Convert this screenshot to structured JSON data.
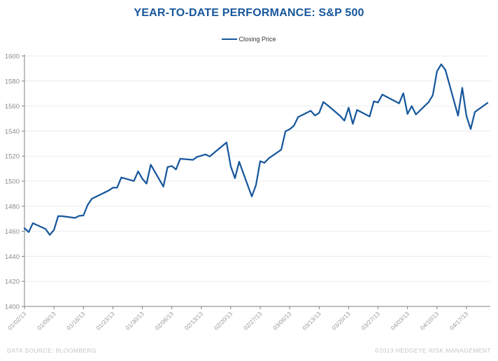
{
  "title": "YEAR-TO-DATE PERFORMANCE: S&P 500",
  "legend": {
    "label": "Closing Price"
  },
  "footer": {
    "left": "DATA SOURCE: BLOOMBERG",
    "right": "©2013 HEDGEYE RISK MANAGEMENT"
  },
  "colors": {
    "accent": "#17579C",
    "line": "#17579C",
    "axis": "#808080",
    "grid": "#EBEBEB",
    "y_tick_text": "#8C8C8C",
    "x_tick_text": "#999999",
    "legend_text": "#333333",
    "footer_text": "#C5C5C5"
  },
  "chart_data": {
    "type": "line",
    "title": "YEAR-TO-DATE PERFORMANCE: S&P 500",
    "xlabel": "",
    "ylabel": "",
    "ylim": [
      1400,
      1600
    ],
    "y_ticks": [
      1400,
      1420,
      1440,
      1460,
      1480,
      1500,
      1520,
      1540,
      1560,
      1580,
      1600
    ],
    "grid": "horizontal",
    "legend_position": "top-center",
    "x_axis_type": "date",
    "x_tick_labels": [
      "01/02/13",
      "01/09/13",
      "01/16/13",
      "01/23/13",
      "01/30/13",
      "02/06/13",
      "02/13/13",
      "02/20/13",
      "02/27/13",
      "03/06/13",
      "03/13/13",
      "03/20/13",
      "03/27/13",
      "04/03/13",
      "04/10/13",
      "04/17/13"
    ],
    "x": [
      "01/02/13",
      "01/03/13",
      "01/04/13",
      "01/07/13",
      "01/08/13",
      "01/09/13",
      "01/10/13",
      "01/11/13",
      "01/14/13",
      "01/15/13",
      "01/16/13",
      "01/17/13",
      "01/18/13",
      "01/22/13",
      "01/23/13",
      "01/24/13",
      "01/25/13",
      "01/28/13",
      "01/29/13",
      "01/30/13",
      "01/31/13",
      "02/01/13",
      "02/04/13",
      "02/05/13",
      "02/06/13",
      "02/07/13",
      "02/08/13",
      "02/11/13",
      "02/12/13",
      "02/13/13",
      "02/14/13",
      "02/15/13",
      "02/19/13",
      "02/20/13",
      "02/21/13",
      "02/22/13",
      "02/25/13",
      "02/26/13",
      "02/27/13",
      "02/28/13",
      "03/01/13",
      "03/04/13",
      "03/05/13",
      "03/06/13",
      "03/07/13",
      "03/08/13",
      "03/11/13",
      "03/12/13",
      "03/13/13",
      "03/14/13",
      "03/15/13",
      "03/18/13",
      "03/19/13",
      "03/20/13",
      "03/21/13",
      "03/22/13",
      "03/25/13",
      "03/26/13",
      "03/27/13",
      "03/28/13",
      "04/01/13",
      "04/02/13",
      "04/03/13",
      "04/04/13",
      "04/05/13",
      "04/08/13",
      "04/09/13",
      "04/10/13",
      "04/11/13",
      "04/12/13",
      "04/15/13",
      "04/16/13",
      "04/17/13",
      "04/18/13",
      "04/19/13",
      "04/22/13"
    ],
    "series": [
      {
        "name": "Closing Price",
        "color": "#17579C",
        "values": [
          1462.42,
          1459.37,
          1466.47,
          1461.89,
          1457.15,
          1461.02,
          1472.12,
          1472.05,
          1470.68,
          1472.34,
          1472.63,
          1480.94,
          1485.98,
          1492.56,
          1494.81,
          1494.82,
          1502.96,
          1500.18,
          1507.84,
          1501.96,
          1498.11,
          1513.17,
          1495.71,
          1511.29,
          1512.12,
          1509.39,
          1517.93,
          1517.01,
          1519.43,
          1520.33,
          1521.38,
          1519.79,
          1530.94,
          1511.95,
          1502.42,
          1515.6,
          1487.85,
          1496.94,
          1515.99,
          1514.68,
          1518.2,
          1525.2,
          1539.79,
          1541.46,
          1544.26,
          1551.18,
          1556.22,
          1552.48,
          1554.52,
          1563.23,
          1560.7,
          1552.1,
          1548.34,
          1558.71,
          1545.8,
          1556.89,
          1551.69,
          1563.77,
          1562.85,
          1569.19,
          1562.17,
          1570.25,
          1553.69,
          1559.98,
          1553.28,
          1563.07,
          1568.61,
          1587.73,
          1593.37,
          1588.85,
          1552.36,
          1574.57,
          1552.01,
          1541.61,
          1555.25,
          1562.5
        ]
      }
    ]
  }
}
